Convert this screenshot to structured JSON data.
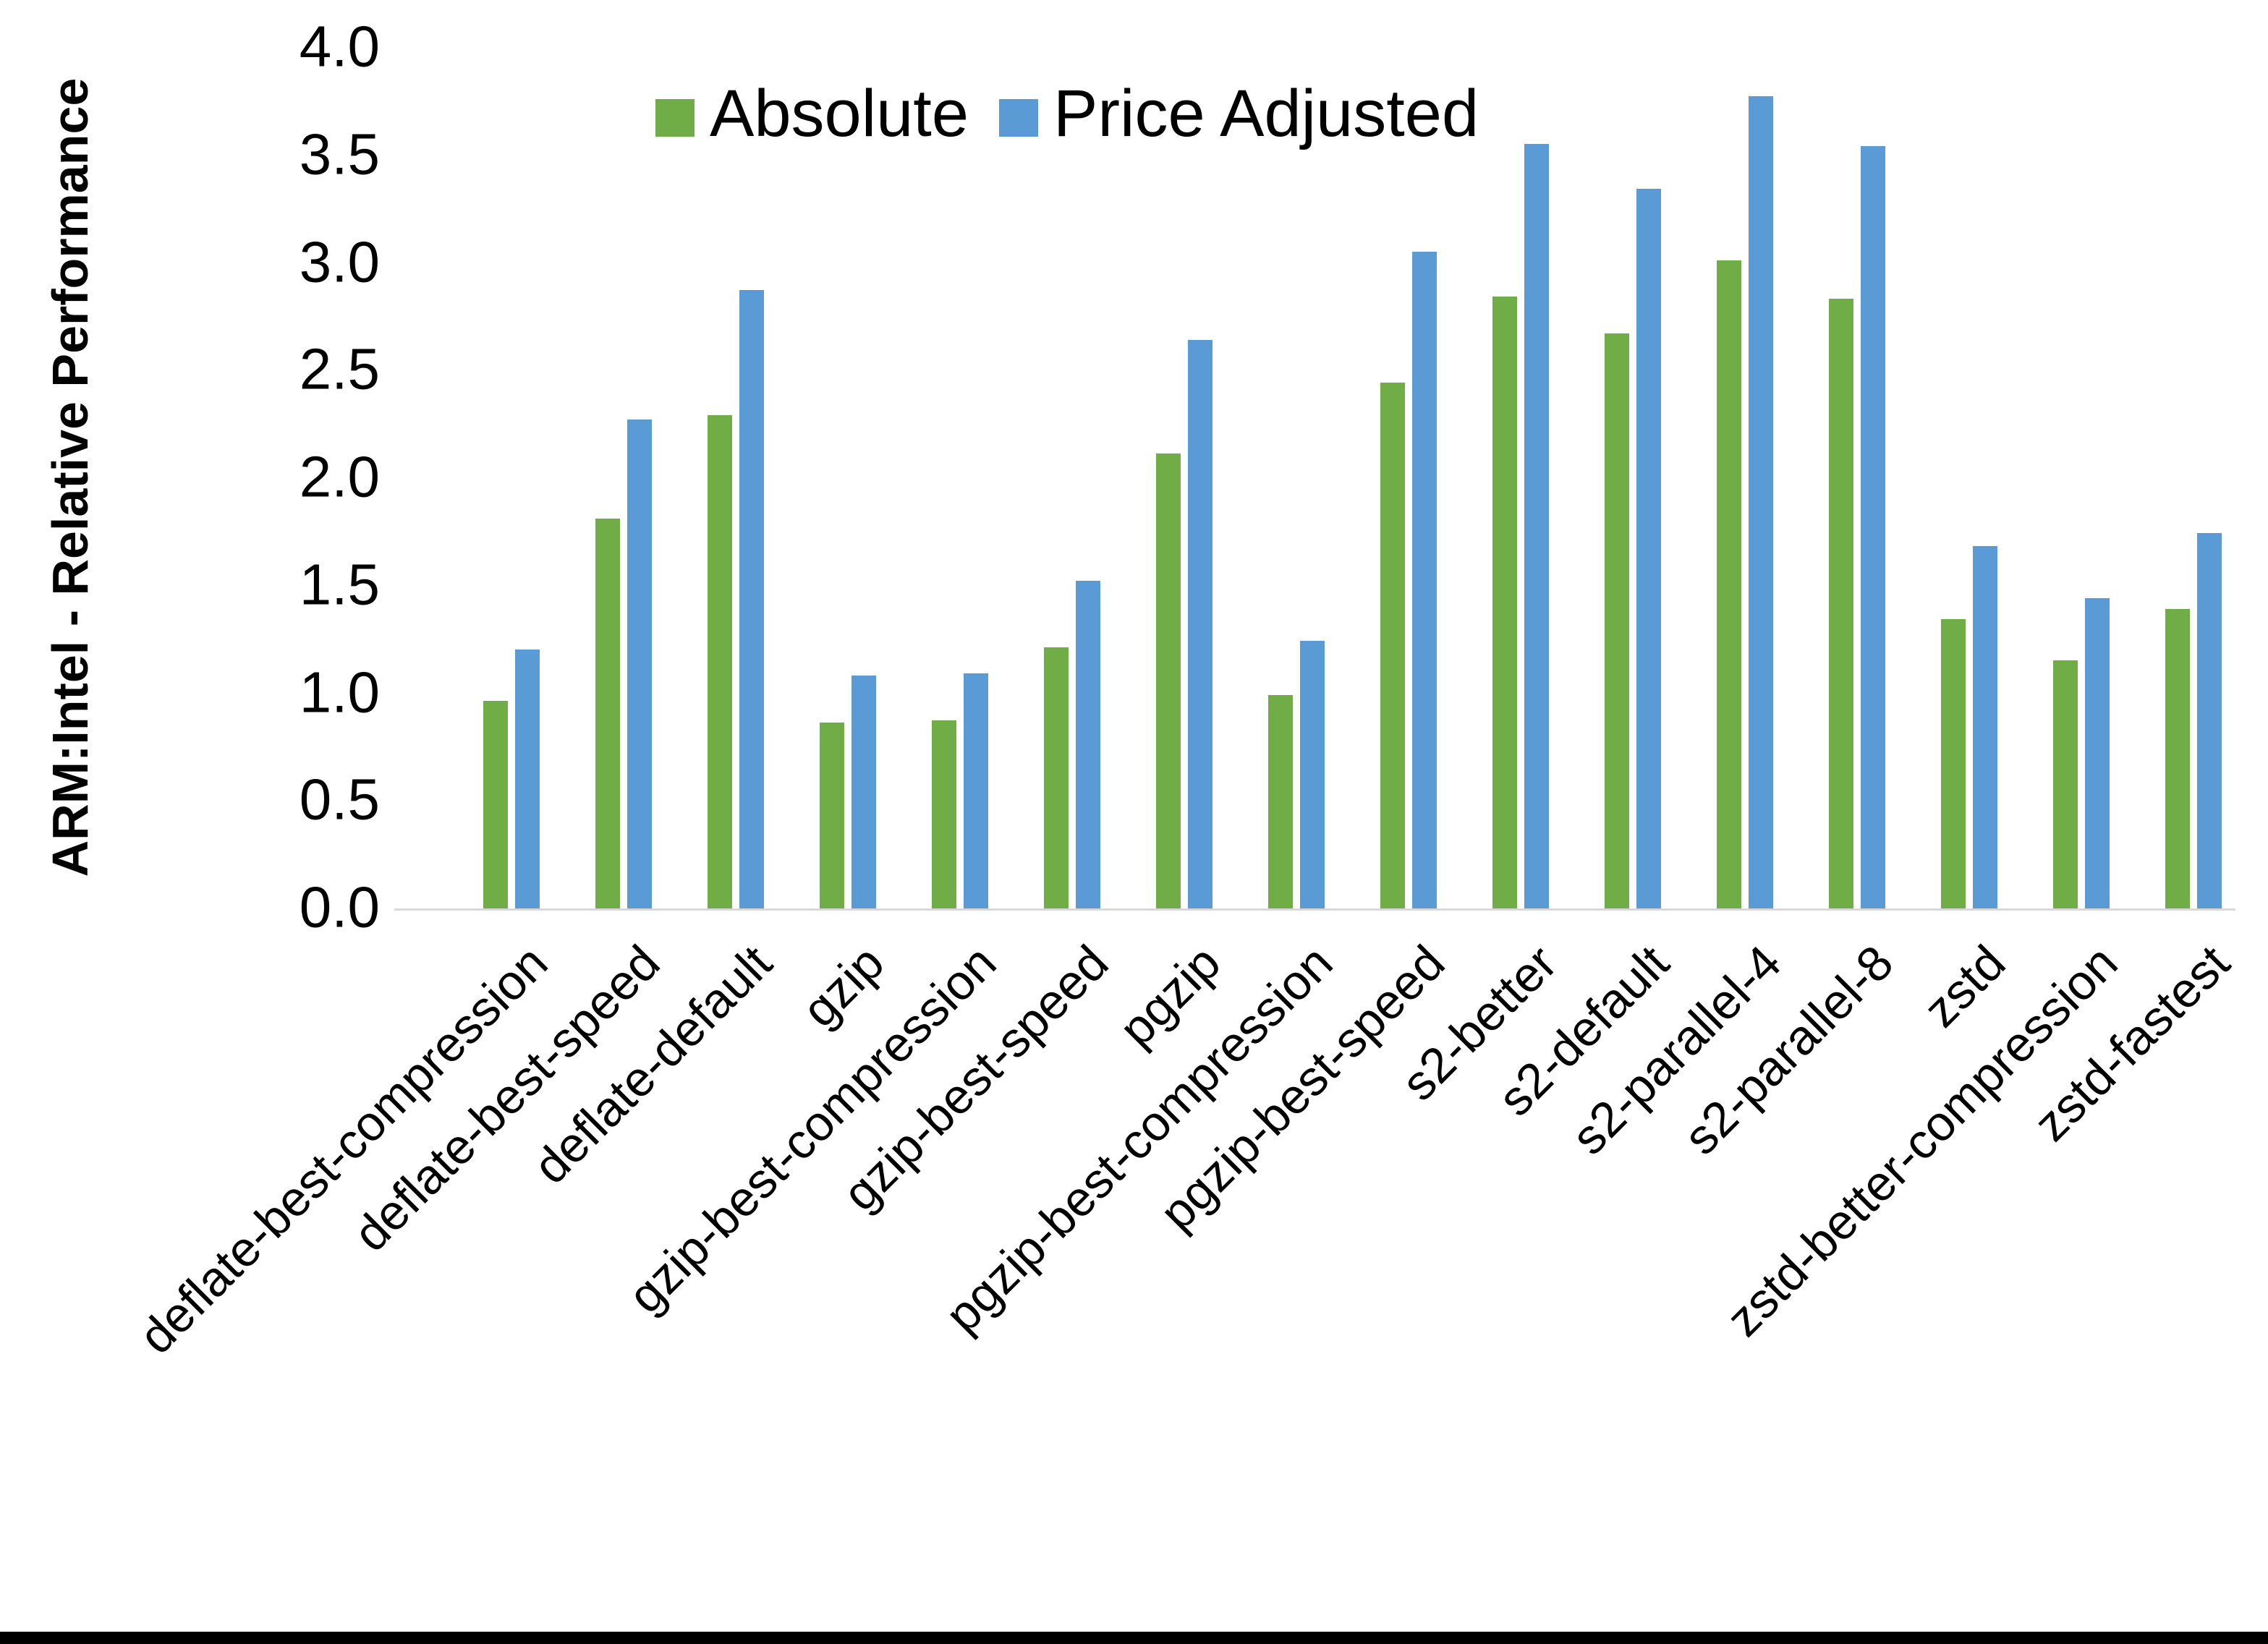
{
  "figure": {
    "background_color": "#FFFFFF",
    "axis_line_color": "#D9D9D9",
    "text_color": "#000000",
    "bottom_border_color": "#000000"
  },
  "chart_data": {
    "type": "bar",
    "title": "",
    "xlabel": "",
    "ylabel": "ARM:Intel - Relative Performance",
    "ylim": [
      0,
      4
    ],
    "ytick_step": 0.5,
    "ytick_labels": [
      "0.0",
      "0.5",
      "1.0",
      "1.5",
      "2.0",
      "2.5",
      "3.0",
      "3.5",
      "4.0"
    ],
    "grid": false,
    "legend_position": "top",
    "categories": [
      "deflate-best-compression",
      "deflate-best-speed",
      "deflate-default",
      "gzip",
      "gzip-best-compression",
      "gzip-best-speed",
      "pgzip",
      "pgzip-best-compression",
      "pgzip-best-speed",
      "s2-better",
      "s2-default",
      "s2-parallel-4",
      "s2-parallel-8",
      "zstd",
      "zstd-better-compression",
      "zstd-fastest"
    ],
    "series": [
      {
        "name": "Absolute",
        "color": "#70AD47",
        "values": [
          0.97,
          1.82,
          2.3,
          0.87,
          0.88,
          1.22,
          2.12,
          1.0,
          2.45,
          2.85,
          2.68,
          3.02,
          2.84,
          1.35,
          1.16,
          1.4
        ]
      },
      {
        "name": "Price Adjusted",
        "color": "#5B9BD5",
        "values": [
          1.21,
          2.28,
          2.88,
          1.09,
          1.1,
          1.53,
          2.65,
          1.25,
          3.06,
          3.56,
          3.35,
          3.78,
          3.55,
          1.69,
          1.45,
          1.75
        ]
      }
    ]
  }
}
